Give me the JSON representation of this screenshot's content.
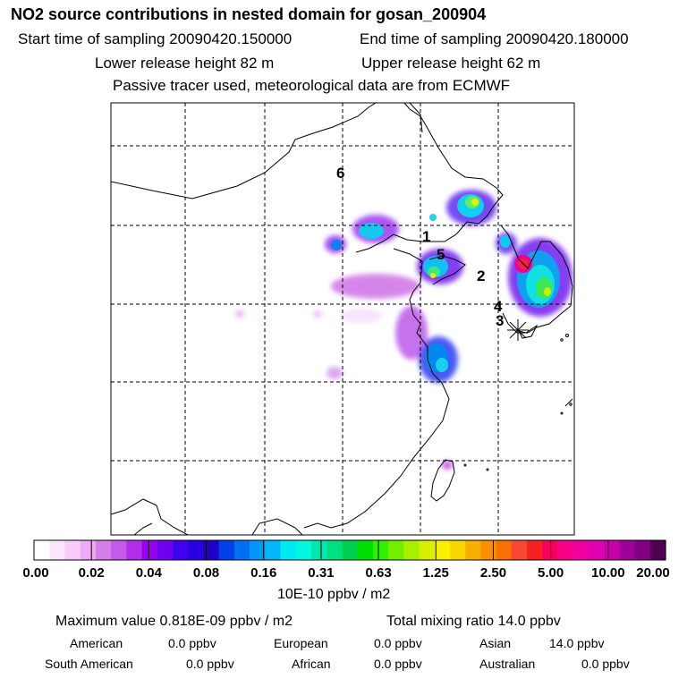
{
  "header": {
    "title": "NO2 source contributions in nested domain for gosan_200904",
    "start_label": "Start time of sampling 20090420.150000",
    "end_label": "End time of sampling 20090420.180000",
    "lower_label": "Lower release height   82 m",
    "upper_label": "Upper release height   62 m",
    "note": "Passive tracer used, meteorological data are from ECMWF"
  },
  "map": {
    "labels": [
      "6",
      "1",
      "5",
      "2",
      "4",
      "3"
    ],
    "receptor": "gosan"
  },
  "scale": {
    "ticks": [
      "0.00",
      "0.02",
      "0.04",
      "0.08",
      "0.16",
      "0.31",
      "0.63",
      "1.25",
      "2.50",
      "5.00",
      "10.00",
      "20.00"
    ],
    "units": "10E-10 ppbv / m2",
    "colors": [
      "#ffffff",
      "#fde6fd",
      "#f8cbf8",
      "#eeaaf4",
      "#d57de8",
      "#c45ae8",
      "#b12ee8",
      "#9a00f0",
      "#7000f0",
      "#4000f0",
      "#2800e0",
      "#2000c8",
      "#0040e8",
      "#0070f0",
      "#0098f8",
      "#00b8f8",
      "#00e8f0",
      "#00f8e0",
      "#00e8b0",
      "#00e080",
      "#00d050",
      "#00e000",
      "#30f000",
      "#70f000",
      "#a8f000",
      "#d8f000",
      "#f8f000",
      "#f8d800",
      "#f8b000",
      "#f89000",
      "#f87000",
      "#f84830",
      "#f82020",
      "#f80060",
      "#f80088",
      "#f000a0",
      "#e000b0",
      "#c800a8",
      "#a00098",
      "#800080",
      "#500050"
    ]
  },
  "summary": {
    "max_text": "Maximum value  0.818E-09 ppbv / m2",
    "total_text": "Total mixing ratio       14.0 ppbv",
    "regions": [
      {
        "label": "American",
        "value": "0.0 ppbv"
      },
      {
        "label": "European",
        "value": "0.0 ppbv"
      },
      {
        "label": "Asian",
        "value": "14.0 ppbv"
      },
      {
        "label": "South American",
        "value": "0.0 ppbv"
      },
      {
        "label": "African",
        "value": "0.0 ppbv"
      },
      {
        "label": "Australian",
        "value": "0.0 ppbv"
      }
    ]
  }
}
